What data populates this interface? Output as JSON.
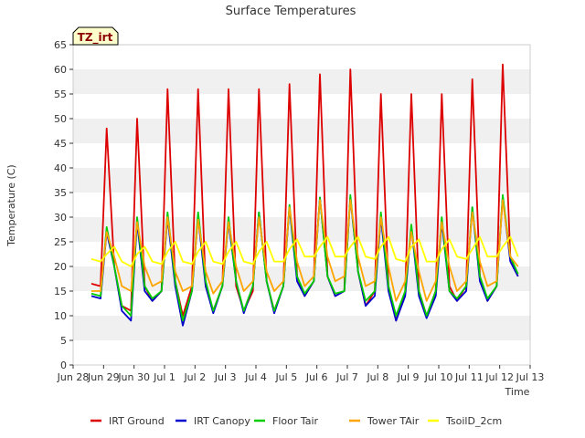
{
  "chart_data": {
    "type": "line",
    "title": "Surface Temperatures",
    "xlabel": "Time",
    "ylabel": "Temperature (C)",
    "badge": "TZ_irt",
    "xlim": [
      0,
      15
    ],
    "ylim": [
      0,
      65
    ],
    "x_ticks": [
      0,
      1,
      2,
      3,
      4,
      5,
      6,
      7,
      8,
      9,
      10,
      11,
      12,
      13,
      14,
      15
    ],
    "x_tick_labels": [
      "Jun 28",
      "Jun 29",
      "Jun 30",
      "Jul 1",
      "Jul 2",
      "Jul 3",
      "Jul 4",
      "Jul 5",
      "Jul 6",
      "Jul 7",
      "Jul 8",
      "Jul 9",
      "Jul 10",
      "Jul 11",
      "Jul 12",
      "Jul 13"
    ],
    "y_ticks": [
      0,
      5,
      10,
      15,
      20,
      25,
      30,
      35,
      40,
      45,
      50,
      55,
      60,
      65
    ],
    "y_tick_labels": [
      "0",
      "5",
      "10",
      "15",
      "20",
      "25",
      "30",
      "35",
      "40",
      "45",
      "50",
      "55",
      "60",
      "65"
    ],
    "x": [
      0.6,
      0.9,
      1.1,
      1.35,
      1.6,
      1.9,
      2.1,
      2.35,
      2.6,
      2.9,
      3.1,
      3.35,
      3.6,
      3.9,
      4.1,
      4.35,
      4.6,
      4.9,
      5.1,
      5.35,
      5.6,
      5.9,
      6.1,
      6.35,
      6.6,
      6.9,
      7.1,
      7.35,
      7.6,
      7.9,
      8.1,
      8.35,
      8.6,
      8.9,
      9.1,
      9.35,
      9.6,
      9.9,
      10.1,
      10.35,
      10.6,
      10.9,
      11.1,
      11.35,
      11.6,
      11.9,
      12.1,
      12.35,
      12.6,
      12.9,
      13.1,
      13.35,
      13.6,
      13.9,
      14.1,
      14.35,
      14.6
    ],
    "series": [
      {
        "name": "IRT Ground",
        "color": "#dd0000",
        "values": [
          16.5,
          16,
          48,
          20,
          12,
          11,
          50,
          16,
          13,
          15,
          56,
          17,
          10,
          16,
          56,
          16,
          11,
          16,
          56,
          16,
          11,
          15,
          56,
          17,
          11,
          16,
          57,
          18,
          14,
          17,
          59,
          18,
          14,
          15,
          60,
          19,
          12,
          15,
          55,
          16,
          9,
          15,
          55,
          15,
          10,
          15,
          55,
          16,
          13,
          16,
          58,
          18,
          13,
          16,
          61,
          22,
          18
        ]
      },
      {
        "name": "IRT Canopy",
        "color": "#0000cc",
        "values": [
          14,
          13.5,
          27,
          20,
          11,
          9,
          29,
          15,
          13,
          15,
          30,
          16,
          8,
          15,
          30,
          16,
          10.5,
          16,
          29,
          17,
          10.5,
          16,
          31,
          17,
          10.5,
          16,
          32,
          17,
          14,
          17,
          34,
          18,
          14,
          15,
          34,
          19,
          12,
          14,
          30,
          15,
          9,
          14,
          28,
          14,
          9.5,
          14,
          29,
          15,
          13,
          15,
          32,
          17,
          13,
          16,
          34,
          21,
          18
        ]
      },
      {
        "name": "Floor Tair",
        "color": "#00cc00",
        "values": [
          14.5,
          14,
          28,
          20,
          12,
          10,
          30,
          16,
          13.5,
          15,
          31,
          17,
          9,
          15,
          31,
          17,
          11,
          16,
          30,
          17,
          11,
          16,
          31,
          17,
          11,
          16,
          32.5,
          18,
          14.5,
          17,
          34,
          18,
          14.5,
          15,
          34.5,
          19,
          13,
          15,
          31,
          16,
          10,
          15,
          28.5,
          15,
          10,
          15,
          30,
          15,
          13.5,
          16,
          32,
          18,
          13.5,
          16,
          34.5,
          22,
          18.5
        ]
      },
      {
        "name": "Tower TAir",
        "color": "#ffa500",
        "values": [
          15,
          15,
          27,
          22,
          16,
          15,
          29,
          20,
          16,
          17,
          30,
          19,
          15,
          16,
          29.5,
          19,
          14.5,
          17,
          29,
          20,
          15,
          17,
          30,
          19,
          15,
          17,
          32,
          21,
          16,
          18,
          33.5,
          22,
          17,
          18,
          33.5,
          22,
          16,
          17,
          30,
          20,
          13,
          17,
          27,
          19,
          13,
          17,
          29,
          20,
          15,
          17,
          31,
          21,
          16,
          17,
          33.5,
          22,
          20
        ]
      },
      {
        "name": "TsoilD_2cm",
        "color": "#ffff00",
        "values": [
          21.5,
          21,
          22.5,
          24,
          21,
          20,
          22.5,
          24,
          21,
          20.5,
          23,
          25,
          21,
          20.5,
          23,
          25,
          21,
          20.5,
          23,
          25,
          21,
          20.5,
          23,
          25,
          21,
          21,
          23.5,
          25.5,
          22,
          22,
          24,
          26,
          22,
          22,
          24,
          26,
          22,
          21.5,
          24,
          26,
          21.5,
          21,
          24,
          25.5,
          21,
          21,
          23.5,
          25.5,
          22,
          21.5,
          23.5,
          26,
          22,
          22,
          24,
          26,
          22
        ]
      }
    ],
    "legend_position": "bottom",
    "grid": "alternating horizontal bands"
  }
}
